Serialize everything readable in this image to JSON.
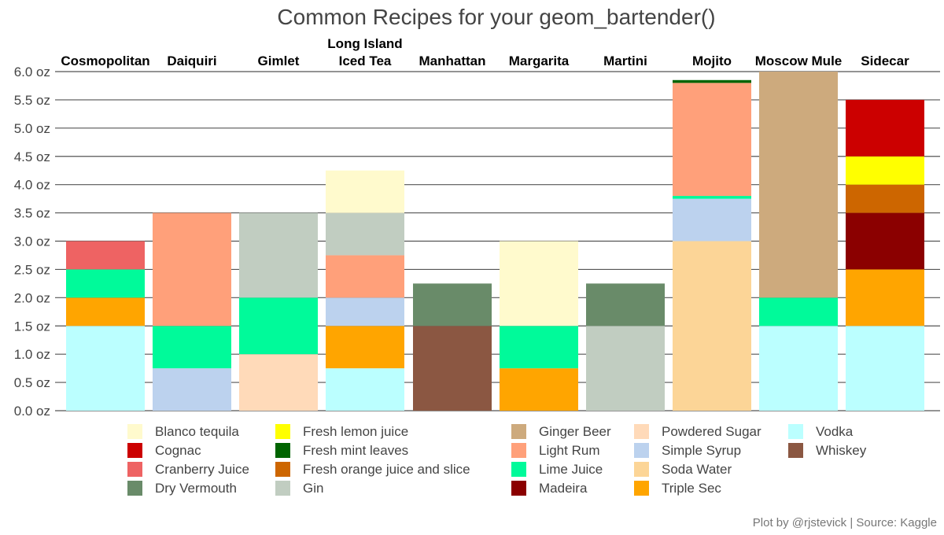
{
  "chart_data": {
    "type": "bar",
    "stacked": true,
    "title": "Common Recipes for your geom_bartender()",
    "caption": "Plot by @rjstevick | Source: Kaggle",
    "xlabel": "",
    "ylabel": "",
    "ylim": [
      0,
      6
    ],
    "y_ticks": [
      0,
      0.5,
      1,
      1.5,
      2,
      2.5,
      3,
      3.5,
      4,
      4.5,
      5,
      5.5,
      6
    ],
    "y_tick_labels": [
      "0.0 oz",
      "0.5 oz",
      "1.0 oz",
      "1.5 oz",
      "2.0 oz",
      "2.5 oz",
      "3.0 oz",
      "3.5 oz",
      "4.0 oz",
      "4.5 oz",
      "5.0 oz",
      "5.5 oz",
      "6.0 oz"
    ],
    "grid": true,
    "category_labels_position": "top",
    "legend_position": "bottom",
    "categories": [
      [
        "Cosmopolitan"
      ],
      [
        "Daiquiri"
      ],
      [
        "Gimlet"
      ],
      [
        "Long Island",
        "Iced Tea"
      ],
      [
        "Manhattan"
      ],
      [
        "Margarita"
      ],
      [
        "Martini"
      ],
      [
        "Mojito"
      ],
      [
        "Moscow Mule"
      ],
      [
        "Sidecar"
      ]
    ],
    "ingredients": [
      {
        "name": "Blanco tequila",
        "color": "#FFFACD"
      },
      {
        "name": "Cognac",
        "color": "#CC0000"
      },
      {
        "name": "Cranberry Juice",
        "color": "#EE6363"
      },
      {
        "name": "Dry Vermouth",
        "color": "#698B69"
      },
      {
        "name": "Fresh lemon juice",
        "color": "#FFFF00"
      },
      {
        "name": "Fresh mint leaves",
        "color": "#006400"
      },
      {
        "name": "Fresh orange juice and slice",
        "color": "#CD6600"
      },
      {
        "name": "Gin",
        "color": "#C1CDC1"
      },
      {
        "name": "Ginger Beer",
        "color": "#CDAA7D"
      },
      {
        "name": "Light Rum",
        "color": "#FFA07A"
      },
      {
        "name": "Lime Juice",
        "color": "#00FA9A"
      },
      {
        "name": "Madeira",
        "color": "#8B0000"
      },
      {
        "name": "Powdered Sugar",
        "color": "#FFDAB9"
      },
      {
        "name": "Simple Syrup",
        "color": "#BCD2EE"
      },
      {
        "name": "Soda Water",
        "color": "#FCD597"
      },
      {
        "name": "Triple Sec",
        "color": "#FFA500"
      },
      {
        "name": "Vodka",
        "color": "#BBFFFF"
      },
      {
        "name": "Whiskey",
        "color": "#8B5742"
      }
    ],
    "stacks": [
      [
        {
          "ingredient": "Vodka",
          "oz": 1.5
        },
        {
          "ingredient": "Triple Sec",
          "oz": 0.5
        },
        {
          "ingredient": "Lime Juice",
          "oz": 0.5
        },
        {
          "ingredient": "Cranberry Juice",
          "oz": 0.5
        }
      ],
      [
        {
          "ingredient": "Simple Syrup",
          "oz": 0.75
        },
        {
          "ingredient": "Lime Juice",
          "oz": 0.75
        },
        {
          "ingredient": "Light Rum",
          "oz": 2.0
        }
      ],
      [
        {
          "ingredient": "Powdered Sugar",
          "oz": 1.0
        },
        {
          "ingredient": "Lime Juice",
          "oz": 1.0
        },
        {
          "ingredient": "Gin",
          "oz": 1.5
        }
      ],
      [
        {
          "ingredient": "Vodka",
          "oz": 0.75
        },
        {
          "ingredient": "Triple Sec",
          "oz": 0.75
        },
        {
          "ingredient": "Simple Syrup",
          "oz": 0.5
        },
        {
          "ingredient": "Light Rum",
          "oz": 0.75
        },
        {
          "ingredient": "Gin",
          "oz": 0.75
        },
        {
          "ingredient": "Blanco tequila",
          "oz": 0.75
        }
      ],
      [
        {
          "ingredient": "Whiskey",
          "oz": 1.5
        },
        {
          "ingredient": "Dry Vermouth",
          "oz": 0.75
        }
      ],
      [
        {
          "ingredient": "Triple Sec",
          "oz": 0.75
        },
        {
          "ingredient": "Lime Juice",
          "oz": 0.75
        },
        {
          "ingredient": "Blanco tequila",
          "oz": 1.5
        }
      ],
      [
        {
          "ingredient": "Gin",
          "oz": 1.5
        },
        {
          "ingredient": "Dry Vermouth",
          "oz": 0.75
        }
      ],
      [
        {
          "ingredient": "Soda Water",
          "oz": 3.0
        },
        {
          "ingredient": "Simple Syrup",
          "oz": 0.75
        },
        {
          "ingredient": "Lime Juice",
          "oz": 0.05
        },
        {
          "ingredient": "Light Rum",
          "oz": 2.0
        },
        {
          "ingredient": "Fresh mint leaves",
          "oz": 0.05
        }
      ],
      [
        {
          "ingredient": "Vodka",
          "oz": 1.5
        },
        {
          "ingredient": "Lime Juice",
          "oz": 0.5
        },
        {
          "ingredient": "Ginger Beer",
          "oz": 4.0
        }
      ],
      [
        {
          "ingredient": "Vodka",
          "oz": 1.5
        },
        {
          "ingredient": "Triple Sec",
          "oz": 1.0
        },
        {
          "ingredient": "Madeira",
          "oz": 1.0
        },
        {
          "ingredient": "Fresh orange juice and slice",
          "oz": 0.5
        },
        {
          "ingredient": "Fresh lemon juice",
          "oz": 0.5
        },
        {
          "ingredient": "Cognac",
          "oz": 1.0
        }
      ]
    ]
  }
}
